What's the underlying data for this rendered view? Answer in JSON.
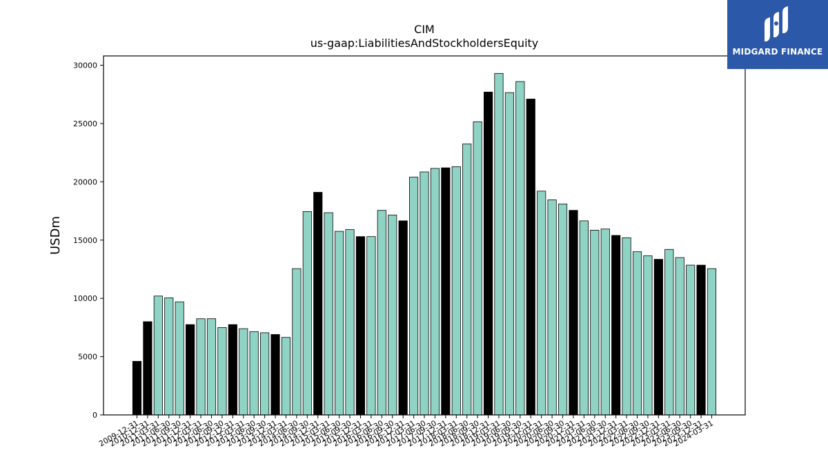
{
  "brand": {
    "name": "MIDGARD FINANCE",
    "icon": "midgard-logo-icon",
    "background": "#2c58aa"
  },
  "chart_data": {
    "type": "bar",
    "title": "CIM",
    "subtitle": "us-gaap:LiabilitiesAndStockholdersEquity",
    "xlabel": "",
    "ylabel": "USDm",
    "ylim": [
      0,
      30800
    ],
    "yticks": [
      0,
      5000,
      10000,
      15000,
      20000,
      25000,
      30000
    ],
    "grid": false,
    "legend": "none",
    "colors": {
      "annual": "#000000",
      "quarterly": "#8fd3c5",
      "edge": "#000000"
    },
    "categories": [
      "2009-12-31",
      "2010-12-31",
      "2011-03-31",
      "2011-06-30",
      "2011-09-30",
      "2011-12-31",
      "2012-03-31",
      "2012-06-30",
      "2012-09-30",
      "2012-12-31",
      "2013-03-31",
      "2013-06-30",
      "2013-09-30",
      "2013-12-31",
      "2014-03-31",
      "2014-06-30",
      "2014-09-30",
      "2014-12-31",
      "2015-03-31",
      "2015-06-30",
      "2015-09-30",
      "2015-12-31",
      "2016-03-31",
      "2016-06-30",
      "2016-09-30",
      "2016-12-31",
      "2017-03-31",
      "2017-06-30",
      "2017-09-30",
      "2017-12-31",
      "2018-03-31",
      "2018-06-30",
      "2018-09-30",
      "2018-12-31",
      "2019-03-31",
      "2019-06-30",
      "2019-09-30",
      "2019-12-31",
      "2020-03-31",
      "2020-06-30",
      "2020-09-30",
      "2020-12-31",
      "2021-03-31",
      "2021-06-30",
      "2021-09-30",
      "2021-12-31",
      "2022-03-31",
      "2022-06-30",
      "2022-09-30",
      "2022-12-31",
      "2023-03-31",
      "2023-06-30",
      "2023-09-30",
      "2023-12-31",
      "2024-03-31"
    ],
    "values": [
      4600,
      8000,
      10200,
      10050,
      9700,
      7750,
      8250,
      8250,
      7500,
      7750,
      7400,
      7150,
      7050,
      6900,
      6650,
      12550,
      17450,
      19100,
      17350,
      15750,
      15900,
      15300,
      15300,
      17550,
      17150,
      16650,
      20400,
      20850,
      21150,
      21200,
      21300,
      23250,
      25150,
      27700,
      29300,
      27650,
      28600,
      27100,
      19200,
      18450,
      18100,
      17550,
      16650,
      15850,
      15950,
      15400,
      15200,
      14000,
      13650,
      13350,
      14200,
      13500,
      12850,
      12850,
      12550
    ],
    "annual": [
      true,
      true,
      false,
      false,
      false,
      true,
      false,
      false,
      false,
      true,
      false,
      false,
      false,
      true,
      false,
      false,
      false,
      true,
      false,
      false,
      false,
      true,
      false,
      false,
      false,
      true,
      false,
      false,
      false,
      true,
      false,
      false,
      false,
      true,
      false,
      false,
      false,
      true,
      false,
      false,
      false,
      true,
      false,
      false,
      false,
      true,
      false,
      false,
      false,
      true,
      false,
      false,
      false,
      true,
      false
    ]
  }
}
